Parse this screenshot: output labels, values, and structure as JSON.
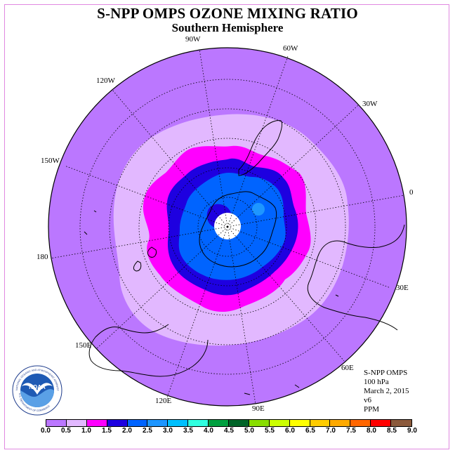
{
  "title": "S-NPP OMPS OZONE MIXING RATIO",
  "subtitle": "Southern Hemisphere",
  "longitude_labels": [
    "90W",
    "60W",
    "30W",
    "0",
    "30E",
    "60E",
    "90E",
    "120E",
    "150E",
    "180",
    "150W",
    "120W"
  ],
  "info": {
    "instrument": "S-NPP OMPS",
    "level": "100 hPa",
    "date": "March 2, 2015",
    "version": "v6",
    "units": "PPM"
  },
  "logo": {
    "name": "NOAA",
    "ring_text": "NATIONAL OCEANIC AND ATMOSPHERIC ADMINISTRATION",
    "bottom_text": "U.S. DEPARTMENT OF COMMERCE"
  },
  "colorbar": {
    "labels": [
      "0.0",
      "0.5",
      "1.0",
      "1.5",
      "2.0",
      "2.5",
      "3.0",
      "3.5",
      "4.0",
      "4.5",
      "5.0",
      "5.5",
      "6.0",
      "6.5",
      "7.0",
      "7.5",
      "8.0",
      "8.5",
      "9.0"
    ],
    "colors": [
      "#bb77ff",
      "#e2b8ff",
      "#ff00ff",
      "#1e00e0",
      "#0064ff",
      "#1e96ff",
      "#00c0ff",
      "#30ffe0",
      "#00a040",
      "#006428",
      "#88dd00",
      "#ccff00",
      "#ffff00",
      "#ffcc00",
      "#ffaa00",
      "#ff6600",
      "#ff0000",
      "#8b5a3c"
    ]
  },
  "map_colors": {
    "ring_0_0_5": "#bb77ff",
    "ring_0_5_1_0": "#e2b8ff",
    "ring_1_0_1_5": "#ff00ff",
    "ring_1_5_2_0": "#1e00e0",
    "ring_2_0_2_5": "#0064ff",
    "patch_2_5_3_0": "#1e96ff",
    "pole_missing": "#ffffff"
  }
}
